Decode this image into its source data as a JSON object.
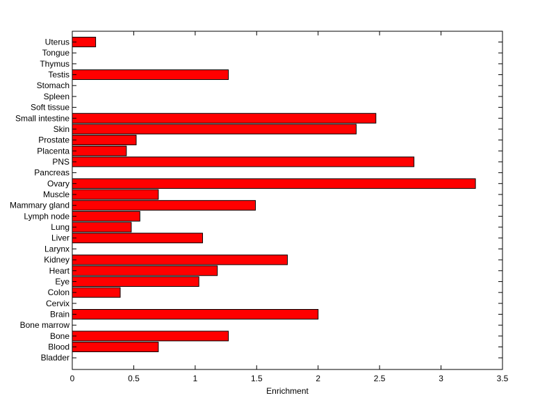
{
  "chart_data": {
    "type": "bar",
    "orientation": "horizontal",
    "xlabel": "Enrichment",
    "ylabel": "",
    "title": "",
    "xlim": [
      0,
      3.5
    ],
    "xticks": [
      0,
      0.5,
      1,
      1.5,
      2,
      2.5,
      3,
      3.5
    ],
    "xtick_labels": [
      "0",
      "0.5",
      "1",
      "1.5",
      "2",
      "2.5",
      "3",
      "3.5"
    ],
    "grid": false,
    "legend": "none",
    "bar_color": "#ff0000",
    "categories": [
      "Uterus",
      "Tongue",
      "Thymus",
      "Testis",
      "Stomach",
      "Spleen",
      "Soft tissue",
      "Small intestine",
      "Skin",
      "Prostate",
      "Placenta",
      "PNS",
      "Pancreas",
      "Ovary",
      "Muscle",
      "Mammary gland",
      "Lymph node",
      "Lung",
      "Liver",
      "Larynx",
      "Kidney",
      "Heart",
      "Eye",
      "Colon",
      "Cervix",
      "Brain",
      "Bone marrow",
      "Bone",
      "Blood",
      "Bladder"
    ],
    "values": [
      0.19,
      0,
      0,
      1.27,
      0,
      0,
      0,
      2.47,
      2.31,
      0.52,
      0.44,
      2.78,
      0,
      3.28,
      0.7,
      1.49,
      0.55,
      0.48,
      1.06,
      0,
      1.75,
      1.18,
      1.03,
      0.39,
      0,
      2.0,
      0,
      1.27,
      0.7,
      0
    ]
  }
}
